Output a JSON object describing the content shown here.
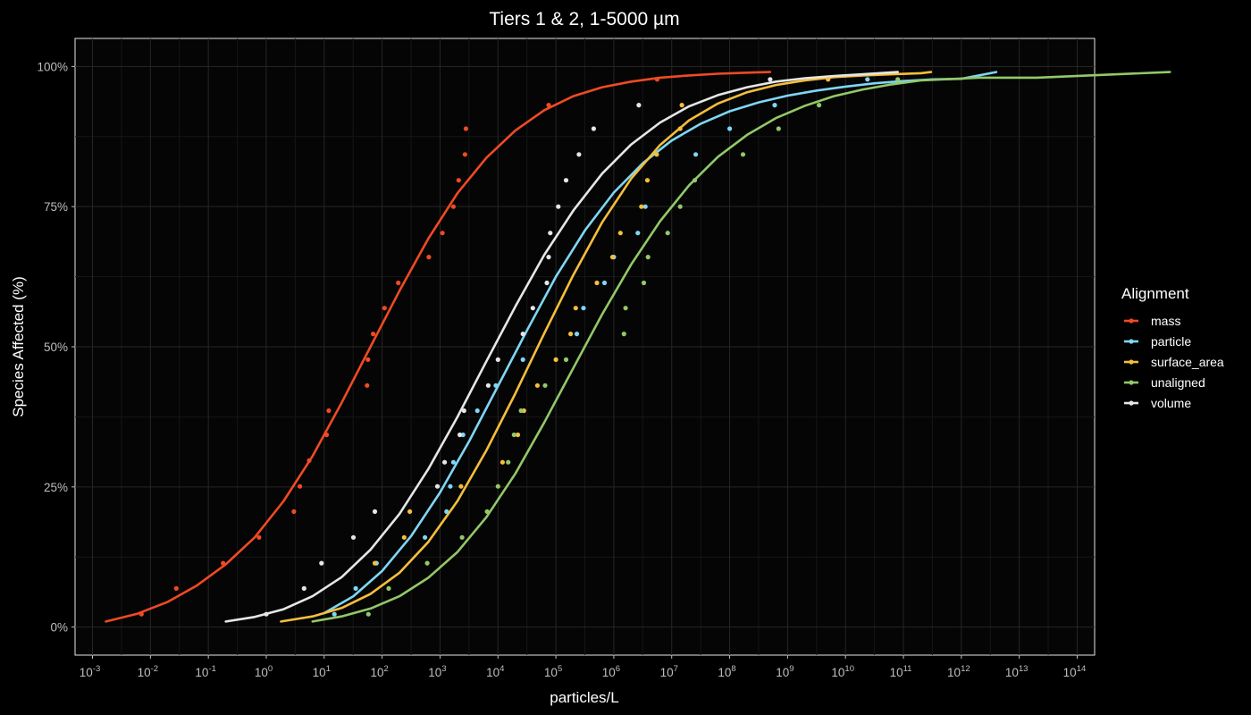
{
  "chart_data": {
    "type": "line",
    "title": "Tiers 1 & 2, 1-5000 µm",
    "xlabel": "particles/L",
    "ylabel": "Species Affected (%)",
    "x_scale": "log10",
    "xlim": [
      0.0005,
      200000000000000
    ],
    "ylim": [
      -5,
      105
    ],
    "x_ticks": [
      0.001,
      0.01,
      0.1,
      1,
      10,
      100,
      1000,
      10000,
      100000,
      1000000,
      10000000,
      100000000,
      1000000000,
      10000000000,
      100000000000,
      1000000000000,
      10000000000000,
      100000000000000
    ],
    "x_tick_exponents": [
      "-3",
      "-2",
      "-1",
      "0",
      "1",
      "2",
      "3",
      "4",
      "5",
      "6",
      "7",
      "8",
      "9",
      "10",
      "11",
      "12",
      "13",
      "14"
    ],
    "x_tick_base": "10",
    "y_ticks": [
      0,
      25,
      50,
      75,
      100
    ],
    "y_tick_labels": [
      "0%",
      "25%",
      "50%",
      "75%",
      "100%"
    ],
    "grid": true,
    "legend": {
      "title": "Alignment",
      "placement": "right"
    },
    "series": [
      {
        "name": "mass",
        "color": "#f04a24",
        "curve": [
          [
            0.0017,
            1
          ],
          [
            0.006,
            2.4
          ],
          [
            0.02,
            4.5
          ],
          [
            0.063,
            7.4
          ],
          [
            0.2,
            11.2
          ],
          [
            0.63,
            16
          ],
          [
            2,
            22.5
          ],
          [
            6.3,
            30.5
          ],
          [
            20,
            40
          ],
          [
            63,
            50
          ],
          [
            200,
            60
          ],
          [
            630,
            69.3
          ],
          [
            2000,
            77.4
          ],
          [
            6300,
            83.7
          ],
          [
            20000,
            88.6
          ],
          [
            63000,
            92.2
          ],
          [
            200000,
            94.7
          ],
          [
            630000,
            96.3
          ],
          [
            2000000,
            97.3
          ],
          [
            6300000,
            98
          ],
          [
            20000000,
            98.4
          ],
          [
            63000000,
            98.7
          ],
          [
            200000000,
            98.9
          ],
          [
            500000000,
            99
          ]
        ],
        "points": [
          [
            0.007,
            2.3
          ],
          [
            0.028,
            6.9
          ],
          [
            0.18,
            11.4
          ],
          [
            0.75,
            16
          ],
          [
            3,
            20.6
          ],
          [
            3.8,
            25.1
          ],
          [
            5.5,
            29.7
          ],
          [
            11,
            34.3
          ],
          [
            12,
            38.6
          ],
          [
            55,
            43.1
          ],
          [
            57,
            47.7
          ],
          [
            70,
            52.3
          ],
          [
            110,
            56.9
          ],
          [
            190,
            61.4
          ],
          [
            640,
            66
          ],
          [
            1100,
            70.3
          ],
          [
            1700,
            75
          ],
          [
            2100,
            79.7
          ],
          [
            2700,
            84.3
          ],
          [
            2800,
            88.9
          ],
          [
            75000,
            93.1
          ],
          [
            5600000,
            97.7
          ]
        ]
      },
      {
        "name": "particle",
        "color": "#7fd6f5",
        "curve": [
          [
            10,
            2.5
          ],
          [
            32,
            5.5
          ],
          [
            100,
            10
          ],
          [
            320,
            16.3
          ],
          [
            1000,
            24
          ],
          [
            3200,
            33.2
          ],
          [
            10000,
            43
          ],
          [
            32000,
            53
          ],
          [
            100000,
            62.5
          ],
          [
            320000,
            70.8
          ],
          [
            1000000,
            77.5
          ],
          [
            3200000,
            82.8
          ],
          [
            10000000,
            86.8
          ],
          [
            32000000,
            89.8
          ],
          [
            100000000,
            92
          ],
          [
            320000000,
            93.6
          ],
          [
            1000000000,
            94.8
          ],
          [
            3200000000,
            95.7
          ],
          [
            10000000000,
            96.4
          ],
          [
            32000000000,
            97
          ],
          [
            100000000000,
            97.4
          ],
          [
            320000000000,
            97.7
          ],
          [
            1000000000000,
            97.8
          ],
          [
            4000000000000,
            99
          ]
        ],
        "points": [
          [
            15,
            2.3
          ],
          [
            35,
            6.9
          ],
          [
            80,
            11.4
          ],
          [
            550,
            16
          ],
          [
            1300,
            20.6
          ],
          [
            1500,
            25.1
          ],
          [
            1700,
            29.4
          ],
          [
            2500,
            34.3
          ],
          [
            4400,
            38.6
          ],
          [
            9200,
            43.1
          ],
          [
            27000,
            47.7
          ],
          [
            230000,
            52.3
          ],
          [
            300000,
            56.9
          ],
          [
            690000,
            61.4
          ],
          [
            1000000,
            66
          ],
          [
            2600000,
            70.3
          ],
          [
            3500000,
            75
          ],
          [
            26000000,
            84.3
          ],
          [
            100000000,
            88.9
          ],
          [
            600000000,
            93.1
          ],
          [
            24000000000,
            97.7
          ]
        ]
      },
      {
        "name": "surface_area",
        "color": "#f5be3c",
        "curve": [
          [
            1.8,
            1
          ],
          [
            6.3,
            1.9
          ],
          [
            20,
            3.4
          ],
          [
            63,
            5.9
          ],
          [
            200,
            9.7
          ],
          [
            630,
            15.2
          ],
          [
            2000,
            22.5
          ],
          [
            6300,
            31.5
          ],
          [
            20000,
            41.7
          ],
          [
            63000,
            52.4
          ],
          [
            200000,
            62.8
          ],
          [
            630000,
            72.2
          ],
          [
            2000000,
            80
          ],
          [
            6300000,
            86
          ],
          [
            20000000,
            90.4
          ],
          [
            63000000,
            93.4
          ],
          [
            200000000,
            95.4
          ],
          [
            630000000,
            96.7
          ],
          [
            2000000000,
            97.5
          ],
          [
            6300000000,
            98.1
          ],
          [
            20000000000,
            98.4
          ],
          [
            63000000000,
            98.6
          ],
          [
            200000000000,
            98.8
          ],
          [
            300000000000,
            99
          ]
        ],
        "points": [
          [
            75,
            11.4
          ],
          [
            240,
            16
          ],
          [
            300,
            20.6
          ],
          [
            2300,
            25.1
          ],
          [
            12000,
            29.4
          ],
          [
            22000,
            34.3
          ],
          [
            28000,
            38.6
          ],
          [
            48000,
            43.1
          ],
          [
            100000,
            47.7
          ],
          [
            180000,
            52.3
          ],
          [
            220000,
            56.9
          ],
          [
            510000,
            61.4
          ],
          [
            950000,
            66
          ],
          [
            1300000,
            70.3
          ],
          [
            3000000,
            75
          ],
          [
            3800000,
            79.7
          ],
          [
            5500000,
            84.3
          ],
          [
            14000000,
            88.9
          ],
          [
            15000000,
            93.1
          ],
          [
            5000000000,
            97.7
          ]
        ]
      },
      {
        "name": "unaligned",
        "color": "#93c868",
        "curve": [
          [
            6.3,
            1
          ],
          [
            20,
            1.9
          ],
          [
            63,
            3.3
          ],
          [
            200,
            5.5
          ],
          [
            630,
            8.8
          ],
          [
            2000,
            13.4
          ],
          [
            6300,
            19.6
          ],
          [
            20000,
            27.4
          ],
          [
            63000,
            36.5
          ],
          [
            200000,
            46.2
          ],
          [
            630000,
            55.8
          ],
          [
            2000000,
            64.7
          ],
          [
            6300000,
            72.4
          ],
          [
            20000000,
            78.8
          ],
          [
            63000000,
            83.9
          ],
          [
            200000000,
            87.8
          ],
          [
            630000000,
            90.8
          ],
          [
            2000000000,
            93
          ],
          [
            6300000000,
            94.7
          ],
          [
            20000000000,
            95.9
          ],
          [
            63000000000,
            96.8
          ],
          [
            200000000000,
            97.5
          ],
          [
            2000000000000,
            98
          ],
          [
            20000000000000,
            98
          ],
          [
            4000000000000000,
            99
          ]
        ],
        "points": [
          [
            58,
            2.3
          ],
          [
            130,
            6.9
          ],
          [
            600,
            11.4
          ],
          [
            2400,
            16
          ],
          [
            6500,
            20.6
          ],
          [
            10000,
            25.1
          ],
          [
            15000,
            29.4
          ],
          [
            19000,
            34.3
          ],
          [
            25000,
            38.6
          ],
          [
            65000,
            43.1
          ],
          [
            150000,
            47.7
          ],
          [
            1500000,
            52.3
          ],
          [
            1600000,
            56.9
          ],
          [
            3300000,
            61.4
          ],
          [
            3900000,
            66
          ],
          [
            8500000,
            70.3
          ],
          [
            14000000,
            75
          ],
          [
            25000000,
            79.7
          ],
          [
            170000000,
            84.3
          ],
          [
            700000000,
            88.9
          ],
          [
            3500000000,
            93.1
          ],
          [
            80000000000,
            97.7
          ]
        ]
      },
      {
        "name": "volume",
        "color": "#e6e6e6",
        "curve": [
          [
            0.2,
            1
          ],
          [
            0.63,
            1.8
          ],
          [
            2,
            3.2
          ],
          [
            6.3,
            5.5
          ],
          [
            20,
            8.9
          ],
          [
            63,
            13.8
          ],
          [
            200,
            20.2
          ],
          [
            630,
            28.2
          ],
          [
            2000,
            37.5
          ],
          [
            6300,
            47.4
          ],
          [
            20000,
            57.2
          ],
          [
            63000,
            66.4
          ],
          [
            200000,
            74.3
          ],
          [
            630000,
            80.9
          ],
          [
            2000000,
            86.1
          ],
          [
            6300000,
            90
          ],
          [
            20000000,
            92.9
          ],
          [
            63000000,
            94.9
          ],
          [
            200000000,
            96.3
          ],
          [
            630000000,
            97.3
          ],
          [
            2000000000,
            97.9
          ],
          [
            6300000000,
            98.3
          ],
          [
            20000000000,
            98.6
          ],
          [
            80000000000,
            99
          ]
        ],
        "points": [
          [
            1,
            2.3
          ],
          [
            4.5,
            6.9
          ],
          [
            9,
            11.4
          ],
          [
            32,
            16
          ],
          [
            75,
            20.6
          ],
          [
            900,
            25.1
          ],
          [
            1200,
            29.4
          ],
          [
            2200,
            34.3
          ],
          [
            2600,
            38.6
          ],
          [
            6800,
            43.1
          ],
          [
            10000,
            47.7
          ],
          [
            27000,
            52.3
          ],
          [
            40000,
            56.9
          ],
          [
            70000,
            61.4
          ],
          [
            75000,
            66
          ],
          [
            80000,
            70.3
          ],
          [
            110000,
            75
          ],
          [
            150000,
            79.7
          ],
          [
            250000,
            84.3
          ],
          [
            450000,
            88.9
          ],
          [
            2700000,
            93.1
          ],
          [
            500000000,
            97.7
          ]
        ]
      }
    ]
  }
}
